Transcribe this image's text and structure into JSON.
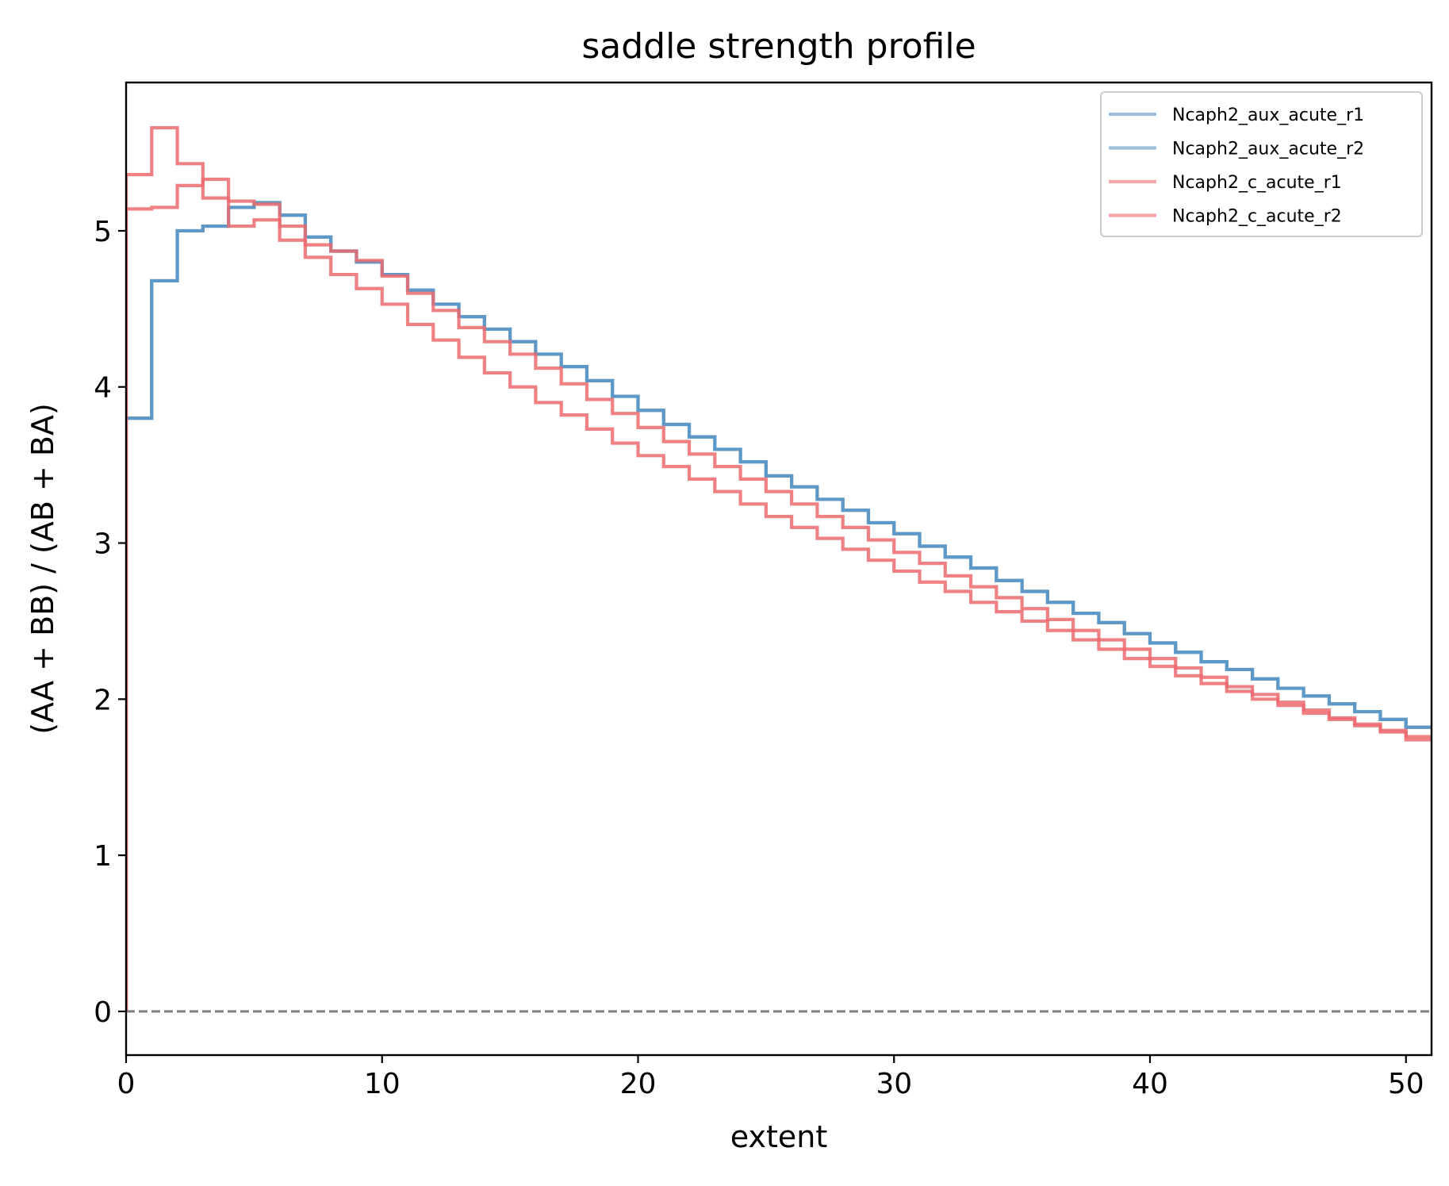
{
  "chart_data": {
    "type": "line",
    "step": true,
    "title": "saddle strength profile",
    "xlabel": "extent",
    "ylabel": "(AA + BB) / (AB + BA)",
    "xlim": [
      0,
      51
    ],
    "ylim": [
      -0.28,
      5.95
    ],
    "xticks": [
      0,
      10,
      20,
      30,
      40,
      50
    ],
    "yticks": [
      0,
      1,
      2,
      3,
      4,
      5
    ],
    "grid": false,
    "legend_position": "top-right",
    "reference_line": {
      "y": 0,
      "color": "#808080",
      "style": "dashed"
    },
    "series": [
      {
        "name": "Ncaph2_aux_acute_r1",
        "color": "#5b95c6",
        "values": [
          3.8,
          4.68,
          5.0,
          5.03,
          5.15,
          5.18,
          5.1,
          4.96,
          4.87,
          4.8,
          4.72,
          4.62,
          4.53,
          4.45,
          4.37,
          4.29,
          4.21,
          4.13,
          4.04,
          3.94,
          3.85,
          3.76,
          3.68,
          3.6,
          3.52,
          3.43,
          3.36,
          3.28,
          3.21,
          3.13,
          3.06,
          2.98,
          2.91,
          2.84,
          2.76,
          2.69,
          2.62,
          2.55,
          2.49,
          2.42,
          2.36,
          2.3,
          2.24,
          2.19,
          2.13,
          2.07,
          2.02,
          1.97,
          1.92,
          1.87,
          1.82
        ]
      },
      {
        "name": "Ncaph2_aux_acute_r2",
        "color": "#5b95c6",
        "values": [
          3.8,
          4.68,
          5.0,
          5.03,
          5.15,
          5.18,
          5.1,
          4.96,
          4.87,
          4.8,
          4.72,
          4.62,
          4.53,
          4.45,
          4.37,
          4.29,
          4.21,
          4.13,
          4.04,
          3.94,
          3.85,
          3.76,
          3.68,
          3.6,
          3.52,
          3.43,
          3.36,
          3.28,
          3.21,
          3.13,
          3.06,
          2.98,
          2.91,
          2.84,
          2.76,
          2.69,
          2.62,
          2.55,
          2.49,
          2.42,
          2.36,
          2.3,
          2.24,
          2.19,
          2.13,
          2.07,
          2.02,
          1.97,
          1.92,
          1.87,
          1.82
        ]
      },
      {
        "name": "Ncaph2_c_acute_r1",
        "color": "#ec6a6e",
        "values": [
          5.14,
          5.15,
          5.29,
          5.33,
          5.19,
          5.17,
          5.03,
          4.91,
          4.87,
          4.81,
          4.71,
          4.6,
          4.49,
          4.38,
          4.29,
          4.21,
          4.12,
          4.02,
          3.92,
          3.83,
          3.74,
          3.65,
          3.57,
          3.49,
          3.41,
          3.33,
          3.25,
          3.17,
          3.1,
          3.02,
          2.94,
          2.87,
          2.79,
          2.72,
          2.65,
          2.58,
          2.51,
          2.44,
          2.38,
          2.32,
          2.26,
          2.2,
          2.14,
          2.08,
          2.03,
          1.98,
          1.93,
          1.88,
          1.84,
          1.8,
          1.76
        ]
      },
      {
        "name": "Ncaph2_c_acute_r2",
        "color": "#ec6a6e",
        "values": [
          5.36,
          5.66,
          5.43,
          5.21,
          5.03,
          5.07,
          4.94,
          4.83,
          4.72,
          4.63,
          4.53,
          4.4,
          4.3,
          4.19,
          4.09,
          4.0,
          3.9,
          3.82,
          3.73,
          3.64,
          3.56,
          3.49,
          3.41,
          3.33,
          3.25,
          3.17,
          3.1,
          3.03,
          2.96,
          2.89,
          2.82,
          2.75,
          2.69,
          2.62,
          2.56,
          2.5,
          2.44,
          2.38,
          2.32,
          2.26,
          2.21,
          2.15,
          2.1,
          2.05,
          2.0,
          1.96,
          1.91,
          1.87,
          1.83,
          1.79,
          1.74
        ]
      }
    ]
  }
}
